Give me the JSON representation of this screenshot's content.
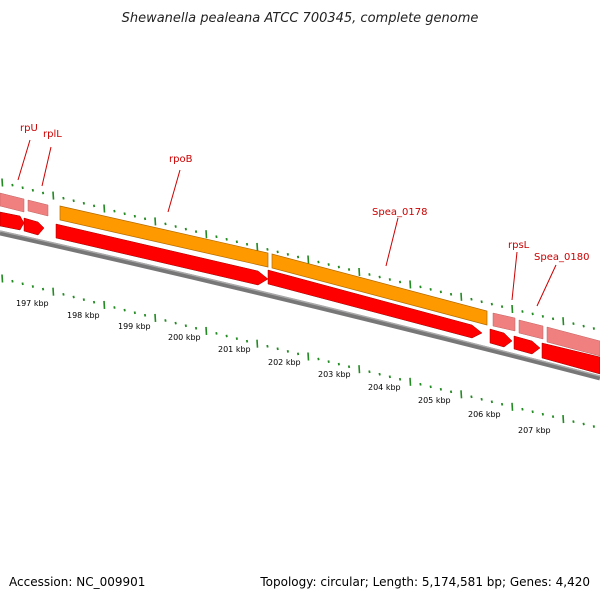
{
  "title": "Shewanella pealeana ATCC 700345, complete genome",
  "footer": {
    "accession": "Accession: NC_009901",
    "summary": "Topology: circular; Length: 5,174,581 bp; Genes: 4,420"
  },
  "colors": {
    "rrna_feature": "#f08080",
    "cds_feature": "#ff0000",
    "gene_feature": "#ff9900",
    "backbone": "#888888",
    "tick": "#228b22",
    "label": "#cc0000"
  },
  "gene_labels": [
    {
      "id": "rpU",
      "text": "rpU"
    },
    {
      "id": "rplL",
      "text": "rplL"
    },
    {
      "id": "rpoB",
      "text": "rpoB"
    },
    {
      "id": "spea-0178",
      "text": "Spea_0178"
    },
    {
      "id": "rpsL",
      "text": "rpsL"
    },
    {
      "id": "spea-0180",
      "text": "Spea_0180"
    }
  ],
  "kbp_labels": [
    "197 kbp",
    "198 kbp",
    "199 kbp",
    "200 kbp",
    "201 kbp",
    "202 kbp",
    "203 kbp",
    "204 kbp",
    "205 kbp",
    "206 kbp",
    "207 kbp"
  ]
}
